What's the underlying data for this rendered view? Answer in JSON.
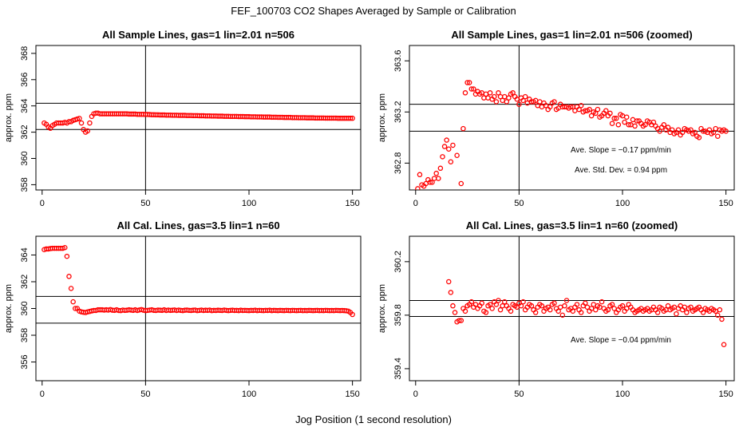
{
  "figure": {
    "title": "FEF_100703  CO2 Shapes Averaged by Sample or Calibration",
    "xlabel": "Jog Position (1 second resolution)"
  },
  "chart_data": [
    {
      "type": "scatter",
      "title": "All Sample Lines, gas=1 lin=2.01 n=506",
      "ylabel": "approx. ppm",
      "xlim": [
        -3,
        154
      ],
      "ylim": [
        357.6,
        368.6
      ],
      "xticks": [
        0,
        50,
        100,
        150
      ],
      "yticks": [
        358,
        360,
        362,
        364,
        366,
        368
      ],
      "hlines": [
        362.2,
        364.2
      ],
      "vline": 50,
      "marker_color": "#ff0000",
      "series": [
        {
          "name": "sample average",
          "x_start": 1,
          "x_step": 1,
          "y": [
            362.7,
            362.6,
            362.4,
            362.3,
            362.5,
            362.6,
            362.7,
            362.7,
            362.7,
            362.7,
            362.75,
            362.7,
            362.8,
            362.8,
            362.9,
            362.95,
            363.0,
            363.05,
            362.7,
            362.2,
            362.0,
            362.1,
            362.7,
            363.2,
            363.4,
            363.45,
            363.45,
            363.4,
            363.4,
            363.4,
            363.4,
            363.4,
            363.4,
            363.4,
            363.4,
            363.4,
            363.4,
            363.4,
            363.4,
            363.4,
            363.4,
            363.38,
            363.38,
            363.38,
            363.38,
            363.36,
            363.36,
            363.36,
            363.36,
            363.35,
            363.35,
            363.34,
            363.33,
            363.33,
            363.32,
            363.32,
            363.31,
            363.31,
            363.31,
            363.3,
            363.3,
            363.3,
            363.29,
            363.29,
            363.29,
            363.28,
            363.28,
            363.28,
            363.28,
            363.27,
            363.27,
            363.27,
            363.26,
            363.26,
            363.26,
            363.25,
            363.25,
            363.25,
            363.24,
            363.24,
            363.24,
            363.23,
            363.23,
            363.23,
            363.22,
            363.22,
            363.22,
            363.21,
            363.21,
            363.21,
            363.2,
            363.2,
            363.2,
            363.2,
            363.19,
            363.19,
            363.19,
            363.18,
            363.18,
            363.18,
            363.17,
            363.17,
            363.17,
            363.16,
            363.16,
            363.16,
            363.15,
            363.15,
            363.15,
            363.15,
            363.14,
            363.14,
            363.14,
            363.13,
            363.13,
            363.13,
            363.12,
            363.12,
            363.12,
            363.12,
            363.11,
            363.11,
            363.11,
            363.1,
            363.1,
            363.1,
            363.1,
            363.09,
            363.09,
            363.09,
            363.09,
            363.08,
            363.08,
            363.08,
            363.08,
            363.08,
            363.07,
            363.07,
            363.07,
            363.07,
            363.07,
            363.07,
            363.06,
            363.06,
            363.06,
            363.06,
            363.06,
            363.06,
            363.06,
            363.06
          ]
        }
      ]
    },
    {
      "type": "scatter",
      "title": "All Sample Lines, gas=1 lin=2.01 n=506 (zoomed)",
      "ylabel": "approx. ppm",
      "xlim": [
        -3,
        154
      ],
      "ylim": [
        362.59,
        363.72
      ],
      "xticks": [
        0,
        50,
        100,
        150
      ],
      "yticks": [
        362.8,
        363.2,
        363.6
      ],
      "hlines": [
        363.05,
        363.26
      ],
      "vline": 50,
      "marker_color": "#ff0000",
      "annotations": [
        "Ave. Slope =  −0.17  ppm/min",
        "Ave. Std. Dev. =  0.94  ppm"
      ],
      "series": [
        {
          "name": "sample average (zoomed)",
          "x_start": 1,
          "x_step": 1,
          "y": [
            362.6,
            362.71,
            362.63,
            362.62,
            362.64,
            362.67,
            362.65,
            362.65,
            362.68,
            362.72,
            362.68,
            362.76,
            362.85,
            362.93,
            362.98,
            362.91,
            362.81,
            362.94,
            362.57,
            362.86,
            362.57,
            362.64,
            363.07,
            363.35,
            363.43,
            363.43,
            363.38,
            363.38,
            363.34,
            363.36,
            363.34,
            363.35,
            363.31,
            363.34,
            363.31,
            363.35,
            363.3,
            363.32,
            363.28,
            363.35,
            363.32,
            363.29,
            363.32,
            363.28,
            363.31,
            363.34,
            363.35,
            363.32,
            363.3,
            363.26,
            363.31,
            363.29,
            363.32,
            363.27,
            363.3,
            363.28,
            363.28,
            363.29,
            363.25,
            363.28,
            363.24,
            363.27,
            363.25,
            363.22,
            363.24,
            363.27,
            363.28,
            363.22,
            363.23,
            363.26,
            363.24,
            363.24,
            363.24,
            363.23,
            363.24,
            363.24,
            363.21,
            363.24,
            363.22,
            363.25,
            363.2,
            363.21,
            363.21,
            363.22,
            363.17,
            363.2,
            363.19,
            363.22,
            363.16,
            363.17,
            363.19,
            363.21,
            363.17,
            363.19,
            363.11,
            363.15,
            363.15,
            363.1,
            363.18,
            363.17,
            363.12,
            363.16,
            363.1,
            363.1,
            363.14,
            363.09,
            363.13,
            363.13,
            363.11,
            363.09,
            363.1,
            363.13,
            363.12,
            363.1,
            363.12,
            363.09,
            363.07,
            363.05,
            363.08,
            363.1,
            363.06,
            363.08,
            363.04,
            363.06,
            363.03,
            363.04,
            363.06,
            363.02,
            363.04,
            363.07,
            363.06,
            363.05,
            363.06,
            363.03,
            363.04,
            363.01,
            363.0,
            363.07,
            363.05,
            363.05,
            363.04,
            363.06,
            363.03,
            363.04,
            363.07,
            363.01,
            363.06,
            363.05,
            363.06,
            363.05
          ]
        }
      ]
    },
    {
      "type": "scatter",
      "title": "All Cal. Lines, gas=3.5 lin=1 n=60",
      "ylabel": "approx. ppm",
      "xlim": [
        -3,
        154
      ],
      "ylim": [
        354.6,
        365.4
      ],
      "xticks": [
        0,
        50,
        100,
        150
      ],
      "yticks": [
        356,
        358,
        360,
        362,
        364
      ],
      "hlines": [
        358.9,
        360.9
      ],
      "vline": 50,
      "marker_color": "#ff0000",
      "series": [
        {
          "name": "calibration average",
          "x_start": 1,
          "x_step": 1,
          "y": [
            364.4,
            364.45,
            364.45,
            364.48,
            364.5,
            364.5,
            364.5,
            364.5,
            364.5,
            364.5,
            364.55,
            363.9,
            362.4,
            361.5,
            360.5,
            360.0,
            360.0,
            359.8,
            359.75,
            359.72,
            359.7,
            359.75,
            359.78,
            359.82,
            359.85,
            359.85,
            359.9,
            359.9,
            359.9,
            359.88,
            359.9,
            359.88,
            359.92,
            359.87,
            359.86,
            359.9,
            359.85,
            359.84,
            359.88,
            359.86,
            359.87,
            359.9,
            359.88,
            359.86,
            359.9,
            359.85,
            359.89,
            359.92,
            359.87,
            359.84,
            359.86,
            359.88,
            359.9,
            359.86,
            359.85,
            359.88,
            359.87,
            359.86,
            359.9,
            359.85,
            359.88,
            359.86,
            359.87,
            359.89,
            359.85,
            359.88,
            359.86,
            359.84,
            359.87,
            359.88,
            359.86,
            359.85,
            359.87,
            359.88,
            359.84,
            359.86,
            359.88,
            359.85,
            359.87,
            359.86,
            359.88,
            359.84,
            359.86,
            359.85,
            359.87,
            359.86,
            359.85,
            359.88,
            359.86,
            359.84,
            359.86,
            359.87,
            359.85,
            359.86,
            359.84,
            359.87,
            359.85,
            359.86,
            359.85,
            359.84,
            359.86,
            359.85,
            359.87,
            359.84,
            359.86,
            359.85,
            359.84,
            359.86,
            359.85,
            359.87,
            359.84,
            359.86,
            359.85,
            359.84,
            359.86,
            359.85,
            359.84,
            359.86,
            359.85,
            359.84,
            359.86,
            359.85,
            359.84,
            359.85,
            359.86,
            359.84,
            359.85,
            359.84,
            359.86,
            359.85,
            359.84,
            359.85,
            359.86,
            359.84,
            359.85,
            359.84,
            359.86,
            359.85,
            359.84,
            359.85,
            359.84,
            359.86,
            359.85,
            359.84,
            359.85,
            359.84,
            359.83,
            359.8,
            359.7,
            359.55
          ]
        }
      ]
    },
    {
      "type": "scatter",
      "title": "All Cal. Lines, gas=3.5 lin=1 n=60 (zoomed)",
      "ylabel": "approx. ppm",
      "xlim": [
        -3,
        154
      ],
      "ylim": [
        359.31,
        360.39
      ],
      "xticks": [
        0,
        50,
        100,
        150
      ],
      "yticks": [
        359.4,
        359.8,
        360.2
      ],
      "hlines": [
        359.79,
        359.91
      ],
      "vline": 50,
      "marker_color": "#ff0000",
      "annotations": [
        "Ave. Slope =  −0.04  ppm/min"
      ],
      "series": [
        {
          "name": "calibration average (zoomed)",
          "x_start": 16,
          "x_step": 1,
          "y": [
            360.05,
            359.97,
            359.87,
            359.82,
            359.75,
            359.76,
            359.76,
            359.85,
            359.83,
            359.87,
            359.88,
            359.9,
            359.86,
            359.88,
            359.85,
            359.87,
            359.89,
            359.83,
            359.82,
            359.87,
            359.88,
            359.85,
            359.9,
            359.88,
            359.91,
            359.84,
            359.87,
            359.9,
            359.87,
            359.85,
            359.83,
            359.88,
            359.87,
            359.86,
            359.89,
            359.87,
            359.9,
            359.84,
            359.86,
            359.88,
            359.87,
            359.84,
            359.82,
            359.86,
            359.88,
            359.87,
            359.83,
            359.85,
            359.86,
            359.84,
            359.88,
            359.89,
            359.85,
            359.83,
            359.86,
            359.8,
            359.87,
            359.91,
            359.84,
            359.85,
            359.83,
            359.86,
            359.88,
            359.84,
            359.82,
            359.87,
            359.89,
            359.86,
            359.83,
            359.85,
            359.88,
            359.84,
            359.87,
            359.86,
            359.9,
            359.85,
            359.83,
            359.84,
            359.87,
            359.88,
            359.85,
            359.82,
            359.84,
            359.86,
            359.87,
            359.83,
            359.85,
            359.88,
            359.86,
            359.84,
            359.82,
            359.83,
            359.84,
            359.85,
            359.83,
            359.84,
            359.85,
            359.83,
            359.84,
            359.86,
            359.84,
            359.82,
            359.86,
            359.85,
            359.83,
            359.84,
            359.87,
            359.84,
            359.85,
            359.86,
            359.81,
            359.85,
            359.87,
            359.84,
            359.86,
            359.82,
            359.85,
            359.86,
            359.83,
            359.84,
            359.85,
            359.86,
            359.84,
            359.82,
            359.85,
            359.84,
            359.83,
            359.85,
            359.84,
            359.83,
            359.8,
            359.84,
            359.77,
            359.58
          ]
        }
      ]
    }
  ]
}
